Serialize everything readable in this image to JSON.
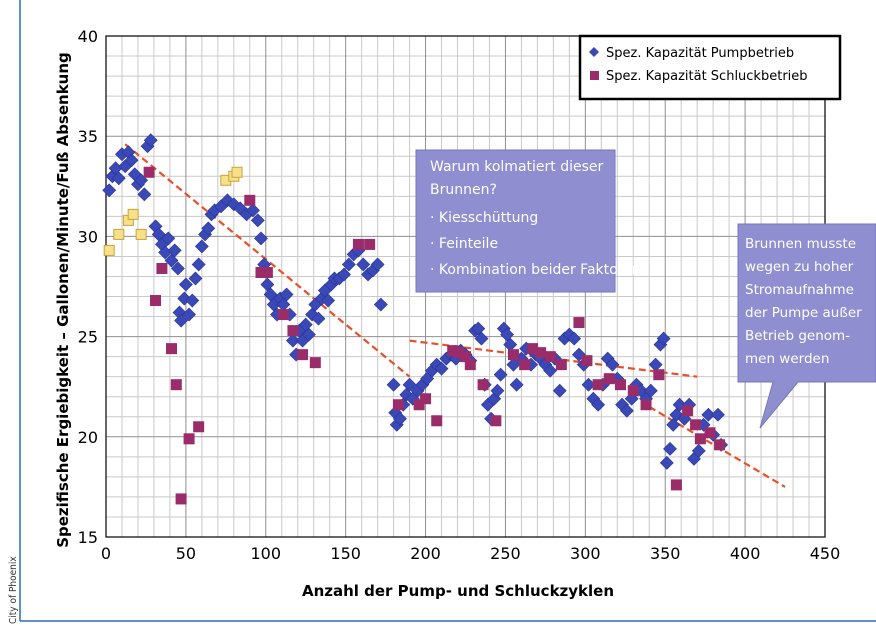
{
  "credit": "City of Phoenix",
  "colors": {
    "pump": "#3a48b8",
    "schluck": "#9a2c6a",
    "schluck_early": "#f6e08a",
    "trend": "#e8502a",
    "callout_fill": "#8e8ed0",
    "callout_text": "#ffffff",
    "grid": "#c9c9c9",
    "border": "#2f6fb0"
  },
  "callouts": {
    "why": {
      "line1": "Warum kolmatiert dieser",
      "line2": "Brunnen?",
      "bullet1": "· Kiesschüttung",
      "bullet2": "· Feinteile",
      "bullet3": "· Kombination beider Faktoren"
    },
    "shutdown": {
      "line1": "Brunnen musste",
      "line2": "wegen zu hoher",
      "line3": "Stromaufnahme",
      "line4": "der Pumpe außer",
      "line5": "Betrieb genom-",
      "line6": "men werden"
    }
  },
  "chart_data": {
    "type": "scatter",
    "title": "",
    "xlabel": "Anzahl der Pump- und Schluckzyklen",
    "ylabel": "Spezifische Ergiebigkeit – Gallonen/Minute/Fuß Absenkung",
    "xlim": [
      0,
      450
    ],
    "ylim": [
      15,
      40
    ],
    "xticks": [
      0,
      50,
      100,
      150,
      200,
      250,
      300,
      350,
      400,
      450
    ],
    "yticks": [
      15,
      20,
      25,
      30,
      35,
      40
    ],
    "grid": true,
    "legend_position": "top-right",
    "series": [
      {
        "name": "Spez. Kapazität Pumpbetrieb",
        "marker": "diamond",
        "points": [
          [
            2,
            32.3
          ],
          [
            4,
            33.0
          ],
          [
            6,
            33.4
          ],
          [
            8,
            32.9
          ],
          [
            10,
            34.1
          ],
          [
            12,
            33.5
          ],
          [
            14,
            34.2
          ],
          [
            16,
            33.8
          ],
          [
            18,
            33.1
          ],
          [
            20,
            32.6
          ],
          [
            22,
            32.8
          ],
          [
            24,
            32.1
          ],
          [
            26,
            34.5
          ],
          [
            28,
            34.8
          ],
          [
            31,
            30.5
          ],
          [
            33,
            30.1
          ],
          [
            35,
            29.6
          ],
          [
            37,
            29.2
          ],
          [
            39,
            29.9
          ],
          [
            41,
            28.8
          ],
          [
            43,
            29.3
          ],
          [
            45,
            28.4
          ],
          [
            46,
            26.2
          ],
          [
            47,
            25.8
          ],
          [
            49,
            26.9
          ],
          [
            50,
            27.6
          ],
          [
            52,
            26.1
          ],
          [
            54,
            26.8
          ],
          [
            56,
            27.9
          ],
          [
            58,
            28.6
          ],
          [
            60,
            29.5
          ],
          [
            62,
            30.1
          ],
          [
            64,
            30.4
          ],
          [
            66,
            31.1
          ],
          [
            68,
            31.3
          ],
          [
            72,
            31.5
          ],
          [
            76,
            31.8
          ],
          [
            80,
            31.6
          ],
          [
            84,
            31.4
          ],
          [
            88,
            31.1
          ],
          [
            92,
            31.3
          ],
          [
            95,
            30.8
          ],
          [
            97,
            29.9
          ],
          [
            99,
            28.6
          ],
          [
            101,
            27.6
          ],
          [
            103,
            27.1
          ],
          [
            105,
            26.6
          ],
          [
            107,
            26.1
          ],
          [
            109,
            26.9
          ],
          [
            111,
            26.6
          ],
          [
            113,
            27.1
          ],
          [
            115,
            26.1
          ],
          [
            117,
            24.8
          ],
          [
            119,
            24.1
          ],
          [
            121,
            25.3
          ],
          [
            123,
            24.8
          ],
          [
            125,
            25.6
          ],
          [
            127,
            25.1
          ],
          [
            129,
            26.1
          ],
          [
            131,
            26.6
          ],
          [
            133,
            25.9
          ],
          [
            135,
            26.9
          ],
          [
            137,
            27.3
          ],
          [
            139,
            26.8
          ],
          [
            141,
            27.6
          ],
          [
            143,
            27.9
          ],
          [
            146,
            27.9
          ],
          [
            149,
            28.1
          ],
          [
            152,
            28.6
          ],
          [
            155,
            29.1
          ],
          [
            158,
            29.3
          ],
          [
            161,
            28.6
          ],
          [
            164,
            28.1
          ],
          [
            167,
            28.3
          ],
          [
            170,
            28.6
          ],
          [
            172,
            26.6
          ],
          [
            180,
            22.6
          ],
          [
            181,
            21.2
          ],
          [
            182,
            20.6
          ],
          [
            184,
            20.9
          ],
          [
            186,
            21.6
          ],
          [
            188,
            22.1
          ],
          [
            190,
            22.6
          ],
          [
            192,
            21.9
          ],
          [
            195,
            22.3
          ],
          [
            198,
            22.6
          ],
          [
            201,
            22.9
          ],
          [
            204,
            23.3
          ],
          [
            207,
            23.6
          ],
          [
            210,
            23.4
          ],
          [
            213,
            23.9
          ],
          [
            216,
            24.1
          ],
          [
            219,
            23.9
          ],
          [
            222,
            24.3
          ],
          [
            225,
            24.1
          ],
          [
            228,
            23.8
          ],
          [
            231,
            25.3
          ],
          [
            233,
            25.4
          ],
          [
            235,
            24.9
          ],
          [
            237,
            22.6
          ],
          [
            239,
            21.6
          ],
          [
            241,
            20.9
          ],
          [
            243,
            21.9
          ],
          [
            245,
            22.3
          ],
          [
            247,
            23.1
          ],
          [
            249,
            25.4
          ],
          [
            251,
            25.1
          ],
          [
            253,
            24.6
          ],
          [
            255,
            23.6
          ],
          [
            257,
            22.6
          ],
          [
            260,
            23.9
          ],
          [
            263,
            24.4
          ],
          [
            266,
            23.6
          ],
          [
            269,
            24.1
          ],
          [
            272,
            23.9
          ],
          [
            275,
            23.6
          ],
          [
            278,
            23.3
          ],
          [
            281,
            23.9
          ],
          [
            284,
            22.3
          ],
          [
            287,
            24.9
          ],
          [
            290,
            25.1
          ],
          [
            293,
            24.9
          ],
          [
            296,
            24.1
          ],
          [
            299,
            23.6
          ],
          [
            302,
            22.6
          ],
          [
            305,
            21.9
          ],
          [
            308,
            21.6
          ],
          [
            311,
            22.6
          ],
          [
            314,
            23.9
          ],
          [
            317,
            23.6
          ],
          [
            320,
            22.9
          ],
          [
            323,
            21.6
          ],
          [
            326,
            21.3
          ],
          [
            329,
            21.9
          ],
          [
            332,
            22.6
          ],
          [
            335,
            22.3
          ],
          [
            338,
            21.9
          ],
          [
            341,
            22.3
          ],
          [
            344,
            23.6
          ],
          [
            347,
            24.6
          ],
          [
            349,
            24.9
          ],
          [
            351,
            18.7
          ],
          [
            353,
            19.4
          ],
          [
            355,
            20.6
          ],
          [
            357,
            21.1
          ],
          [
            359,
            21.6
          ],
          [
            362,
            20.9
          ],
          [
            365,
            21.6
          ],
          [
            368,
            18.9
          ],
          [
            371,
            19.3
          ],
          [
            374,
            20.6
          ],
          [
            377,
            21.1
          ],
          [
            380,
            20.1
          ],
          [
            383,
            21.1
          ],
          [
            385,
            19.6
          ]
        ]
      },
      {
        "name": "Spez. Kapazität Schluckbetrieb",
        "marker": "square",
        "points": [
          [
            27,
            33.2
          ],
          [
            31,
            26.8
          ],
          [
            35,
            28.4
          ],
          [
            41,
            24.4
          ],
          [
            44,
            22.6
          ],
          [
            47,
            16.9
          ],
          [
            52,
            19.9
          ],
          [
            58,
            20.5
          ],
          [
            90,
            31.8
          ],
          [
            97,
            28.2
          ],
          [
            101,
            28.2
          ],
          [
            111,
            26.1
          ],
          [
            117,
            25.3
          ],
          [
            123,
            24.1
          ],
          [
            131,
            23.7
          ],
          [
            158,
            29.6
          ],
          [
            165,
            29.6
          ],
          [
            183,
            21.6
          ],
          [
            196,
            21.6
          ],
          [
            200,
            21.9
          ],
          [
            207,
            20.8
          ],
          [
            217,
            24.3
          ],
          [
            221,
            24.2
          ],
          [
            225,
            24.0
          ],
          [
            228,
            23.6
          ],
          [
            236,
            22.6
          ],
          [
            244,
            20.8
          ],
          [
            255,
            24.1
          ],
          [
            262,
            23.6
          ],
          [
            267,
            24.4
          ],
          [
            272,
            24.2
          ],
          [
            278,
            24.0
          ],
          [
            285,
            23.6
          ],
          [
            296,
            25.7
          ],
          [
            301,
            23.8
          ],
          [
            308,
            22.6
          ],
          [
            315,
            22.9
          ],
          [
            322,
            22.6
          ],
          [
            330,
            22.3
          ],
          [
            338,
            21.6
          ],
          [
            346,
            23.1
          ],
          [
            357,
            17.6
          ],
          [
            364,
            21.3
          ],
          [
            369,
            20.6
          ],
          [
            372,
            19.9
          ],
          [
            378,
            20.2
          ],
          [
            384,
            19.6
          ]
        ]
      }
    ],
    "early_schluck_points": [
      [
        2,
        29.3
      ],
      [
        8,
        30.1
      ],
      [
        14,
        30.8
      ],
      [
        17,
        31.1
      ],
      [
        22,
        30.1
      ],
      [
        75,
        32.8
      ],
      [
        80,
        33.0
      ],
      [
        82,
        33.2
      ]
    ],
    "trendlines": [
      [
        [
          12,
          34.6
        ],
        [
          190,
          23.0
        ]
      ],
      [
        [
          190,
          24.8
        ],
        [
          370,
          23.0
        ]
      ],
      [
        [
          340,
          21.5
        ],
        [
          425,
          17.5
        ]
      ]
    ]
  }
}
